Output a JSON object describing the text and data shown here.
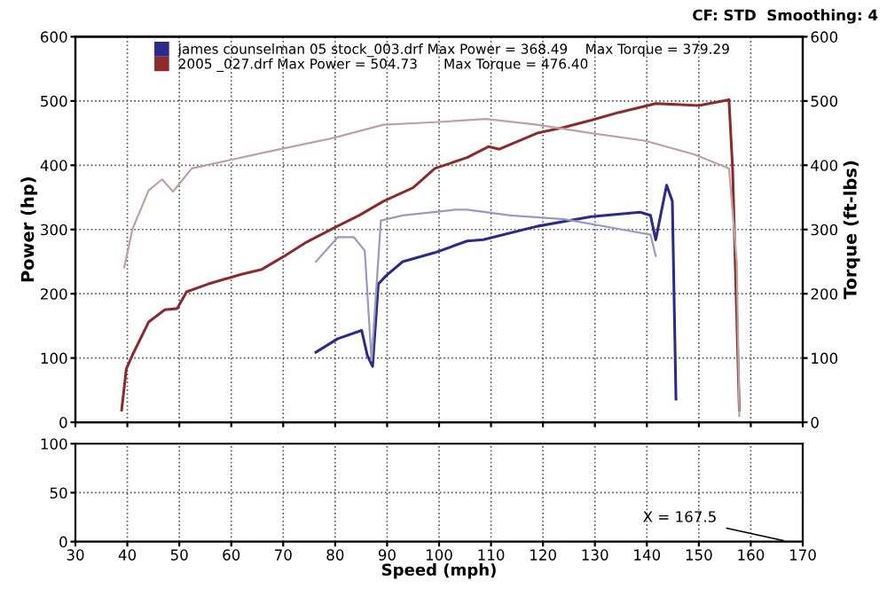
{
  "chart_data": [
    {
      "type": "line",
      "ylabel": "Power (hp)",
      "y2label": "Torque (ft-lbs)",
      "annotations": [
        "CF: STD  Smoothing: 4"
      ],
      "xlim": [
        30,
        170
      ],
      "xticks": [
        30,
        40,
        50,
        60,
        70,
        80,
        90,
        100,
        110,
        120,
        130,
        140,
        150,
        160,
        170
      ],
      "ylim": [
        0,
        600
      ],
      "yticks": [
        0,
        100,
        200,
        300,
        400,
        500,
        600
      ],
      "y2lim": [
        0,
        600
      ],
      "y2ticks": [
        0,
        100,
        200,
        300,
        400,
        500,
        600
      ],
      "tick_labels": "y",
      "grid": true,
      "legend": "top",
      "line_style": "solid",
      "marker": "none",
      "series": [
        {
          "name": "james counselman 05 stock_003.drf Max Power = 368.49    Max Torque = 379.29",
          "color": "#2b2b8c",
          "x": [
            76.3,
            80.5,
            85.1,
            86.2,
            87.2,
            88.3,
            89.8,
            93,
            99.2,
            105.4,
            108.5,
            118.9,
            129.3,
            138.7,
            140.7,
            141.7,
            143.8,
            144.9,
            145.6
          ],
          "values": [
            109,
            130,
            143,
            104,
            87,
            215,
            228,
            250,
            264,
            282,
            284,
            305,
            320,
            327,
            322,
            284,
            369,
            344,
            36
          ]
        },
        {
          "color": "#9a9ac0",
          "axis": "y2",
          "x": [
            76.3,
            80.5,
            83.6,
            85.7,
            87,
            88.8,
            93,
            103.3,
            105.4,
            113.7,
            124.1,
            134.5,
            140.7,
            141.7
          ],
          "values": [
            250,
            288,
            288,
            267,
            96,
            314,
            322,
            331,
            331,
            322,
            316,
            301,
            292,
            259
          ]
        },
        {
          "name": "2005 _027.drf Max Power = 504.73      Max Torque = 476.40",
          "color": "#8c2b2b",
          "x": [
            38.9,
            39.8,
            41,
            44.1,
            47.2,
            49.6,
            51.4,
            55.5,
            61.8,
            65.9,
            70.1,
            74.2,
            79.4,
            84.6,
            89.3,
            95,
            99.2,
            105.4,
            109.5,
            111.6,
            118.9,
            124.1,
            129.3,
            134.5,
            141.7,
            150,
            155.8,
            156.5,
            157.8
          ],
          "values": [
            19,
            83,
            105,
            156,
            175,
            177,
            203,
            215,
            230,
            238,
            258,
            279,
            301,
            322,
            344,
            365,
            395,
            412,
            429,
            425,
            450,
            459,
            470,
            482,
            496,
            493,
            502,
            395,
            19
          ]
        },
        {
          "color": "#c0a0a0",
          "axis": "y2",
          "x": [
            39.4,
            41,
            44.1,
            46.7,
            48.8,
            52.4,
            59.7,
            67,
            79.4,
            89.3,
            99.2,
            109,
            118.9,
            129.3,
            139.7,
            149.1,
            155.8,
            157.3,
            157.8
          ],
          "values": [
            241,
            301,
            361,
            378,
            359,
            395,
            408,
            421,
            442,
            463,
            467,
            472,
            463,
            450,
            438,
            417,
            395,
            250,
            10
          ]
        }
      ]
    },
    {
      "type": "line",
      "xlabel": "Speed (mph)",
      "xlim": [
        30,
        170
      ],
      "xticks": [
        30,
        40,
        50,
        60,
        70,
        80,
        90,
        100,
        110,
        120,
        130,
        140,
        150,
        160,
        170
      ],
      "ylim": [
        0,
        100
      ],
      "yticks": [
        0,
        50,
        100
      ],
      "grid": true,
      "annotations": [
        "X = 167.5"
      ]
    }
  ]
}
